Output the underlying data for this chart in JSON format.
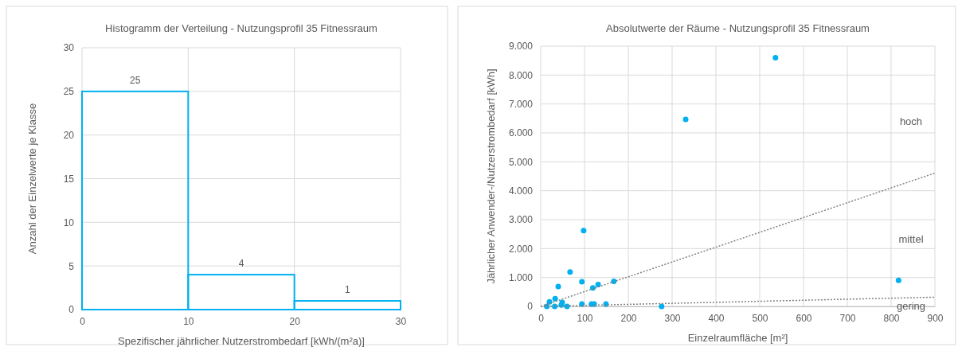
{
  "chart_data": [
    {
      "type": "histogram",
      "title": "Histogramm der Verteilung - Nutzungsprofil 35 Fitnessraum",
      "xlabel": "Spezifischer jährlicher Nutzerstrombedarf [kWh/(m²a)]",
      "ylabel": "Anzahl der Einzelwerte je Klasse",
      "bins": [
        0,
        10,
        20,
        30
      ],
      "values": [
        25,
        4,
        1
      ],
      "color": "#00b0f0",
      "xlim": [
        0,
        30
      ],
      "xticks": [
        0,
        10,
        20,
        30
      ],
      "ylim": [
        0,
        30
      ],
      "yticks": [
        0,
        5,
        10,
        15,
        20,
        25,
        30
      ],
      "grid": true,
      "data_labels": true
    },
    {
      "type": "scatter",
      "title": "Absolutwerte der Räume - Nutzungsprofil 35 Fitnessraum",
      "xlabel": "Einzelraumfläche [m²]",
      "ylabel": "Jährlicher Anwender-/Nutzerstrombedarf [kWh]",
      "xlim": [
        0,
        900
      ],
      "xticks": [
        0,
        100,
        200,
        300,
        400,
        500,
        600,
        700,
        800,
        900
      ],
      "ylim": [
        0,
        9000
      ],
      "yticks": [
        0,
        {
          "value": 1000,
          "label": "1.000"
        },
        {
          "value": 2000,
          "label": "2.000"
        },
        {
          "value": 3000,
          "label": "3.000"
        },
        {
          "value": 4000,
          "label": "4.000"
        },
        {
          "value": 5000,
          "label": "5.000"
        },
        {
          "value": 6000,
          "label": "6.000"
        },
        {
          "value": 7000,
          "label": "7.000"
        },
        {
          "value": 8000,
          "label": "8.000"
        },
        {
          "value": 9000,
          "label": "9.000"
        }
      ],
      "grid": true,
      "annotations": [
        "hoch",
        "mittel",
        "gering"
      ],
      "series": [
        {
          "type": "scatter",
          "marker": "circle",
          "color": "#00b0f0",
          "x": [
            14,
            20,
            33,
            32,
            40,
            49,
            47,
            60,
            67,
            94,
            94,
            119,
            131,
            116,
            122,
            149,
            167,
            276,
            98,
            331,
            536,
            817
          ],
          "values": [
            0,
            160,
            270,
            0,
            690,
            140,
            50,
            0,
            1190,
            850,
            80,
            640,
            760,
            80,
            80,
            80,
            870,
            0,
            2620,
            6470,
            8600,
            900
          ]
        },
        {
          "type": "line",
          "color": "#808080",
          "line_style": "dotted",
          "x": [
            0,
            900
          ],
          "values": [
            0,
            4610
          ]
        },
        {
          "type": "line",
          "color": "#808080",
          "line_style": "dotted",
          "x": [
            0,
            900
          ],
          "values": [
            0,
            320
          ]
        }
      ]
    }
  ]
}
